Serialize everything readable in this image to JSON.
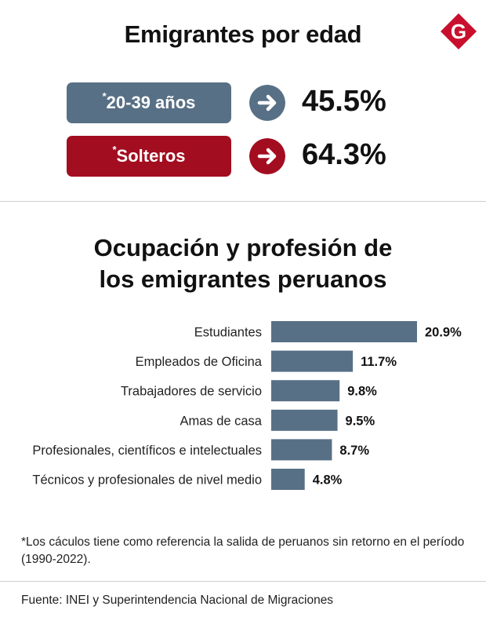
{
  "header": {
    "title": "Emigrantes por edad"
  },
  "stats": [
    {
      "marker": "*",
      "label": "20-39 años",
      "value": "45.5%",
      "color": "#587085"
    },
    {
      "marker": "*",
      "label": "Solteros",
      "value": "64.3%",
      "color": "#a30d20"
    }
  ],
  "colors": {
    "bar": "#587085",
    "logo": "#c8102e",
    "divider": "#cfcfcf"
  },
  "chart_data": {
    "type": "bar",
    "orientation": "horizontal",
    "title": "Ocupación y profesión de los emigrantes peruanos",
    "title_lines": [
      "Ocupación y profesión de",
      "los emigrantes peruanos"
    ],
    "categories": [
      "Estudiantes",
      "Empleados de Oficina",
      "Trabajadores de servicio",
      "Amas de casa",
      "Profesionales, científicos e intelectuales",
      "Técnicos y profesionales de nivel medio"
    ],
    "values": [
      20.9,
      11.7,
      9.8,
      9.5,
      8.7,
      4.8
    ],
    "value_labels": [
      "20.9%",
      "11.7%",
      "9.8%",
      "9.5%",
      "8.7%",
      "4.8%"
    ],
    "unit": "%",
    "grid": false,
    "axes_visible": false
  },
  "footer": {
    "note": "*Los cáculos tiene como referencia la salida de peruanos sin retorno en el período (1990-2022).",
    "source": "Fuente: INEI y Superintendencia Nacional de Migraciones"
  },
  "logo": {
    "letter": "G",
    "icon": "gestion-logo-icon"
  }
}
